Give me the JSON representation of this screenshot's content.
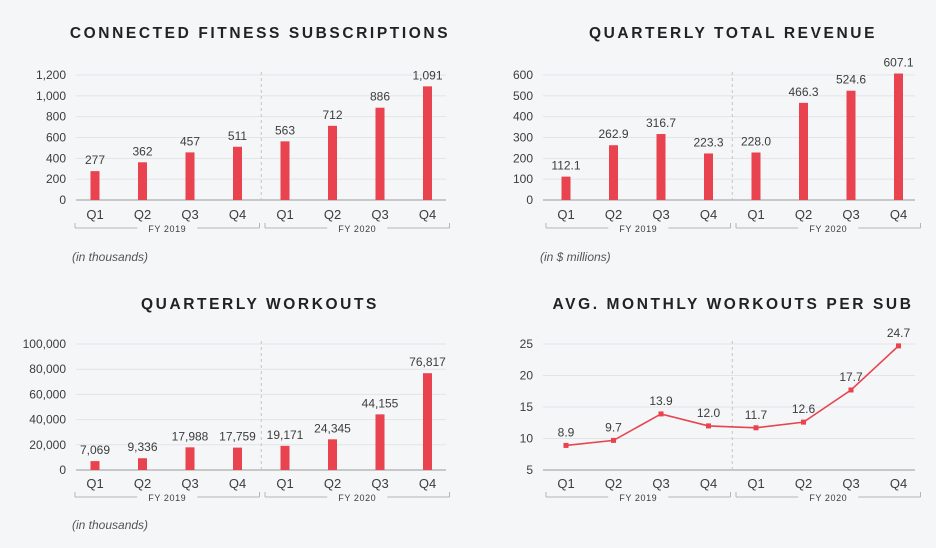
{
  "colors": {
    "bar": "#e8434e",
    "grid": "#e2e4e8",
    "axis": "#9a9a9a",
    "bracket": "#b5b5b5",
    "divider": "#c4c4c4"
  },
  "chart_data": [
    {
      "type": "bar",
      "title": "CONNECTED FITNESS SUBSCRIPTIONS",
      "categories": [
        "Q1",
        "Q2",
        "Q3",
        "Q4",
        "Q1",
        "Q2",
        "Q3",
        "Q4"
      ],
      "values": [
        277,
        362,
        457,
        511,
        563,
        712,
        886,
        1091
      ],
      "value_labels": [
        "277",
        "362",
        "457",
        "511",
        "563",
        "712",
        "886",
        "1,091"
      ],
      "ylim": [
        0,
        1200
      ],
      "yticks": [
        0,
        200,
        400,
        600,
        800,
        1000,
        1200
      ],
      "ytick_labels": [
        "0",
        "200",
        "400",
        "600",
        "800",
        "1,000",
        "1,200"
      ],
      "groups": [
        {
          "label": "FY 2019",
          "count": 4
        },
        {
          "label": "FY 2020",
          "count": 4
        }
      ],
      "unit_note": "(in thousands)",
      "grid": true
    },
    {
      "type": "bar",
      "title": "QUARTERLY TOTAL REVENUE",
      "categories": [
        "Q1",
        "Q2",
        "Q3",
        "Q4",
        "Q1",
        "Q2",
        "Q3",
        "Q4"
      ],
      "values": [
        112.1,
        262.9,
        316.7,
        223.3,
        228.0,
        466.3,
        524.6,
        607.1
      ],
      "value_labels": [
        "112.1",
        "262.9",
        "316.7",
        "223.3",
        "228.0",
        "466.3",
        "524.6",
        "607.1"
      ],
      "ylim": [
        0,
        600
      ],
      "yticks": [
        0,
        100,
        200,
        300,
        400,
        500,
        600
      ],
      "ytick_labels": [
        "0",
        "100",
        "200",
        "300",
        "400",
        "500",
        "600"
      ],
      "groups": [
        {
          "label": "FY 2019",
          "count": 4
        },
        {
          "label": "FY 2020",
          "count": 4
        }
      ],
      "unit_note": "(in $ millions)",
      "grid": true
    },
    {
      "type": "bar",
      "title": "QUARTERLY WORKOUTS",
      "categories": [
        "Q1",
        "Q2",
        "Q3",
        "Q4",
        "Q1",
        "Q2",
        "Q3",
        "Q4"
      ],
      "values": [
        7069,
        9336,
        17988,
        17759,
        19171,
        24345,
        44155,
        76817
      ],
      "value_labels": [
        "7,069",
        "9,336",
        "17,988",
        "17,759",
        "19,171",
        "24,345",
        "44,155",
        "76,817"
      ],
      "ylim": [
        0,
        100000
      ],
      "yticks": [
        0,
        20000,
        40000,
        60000,
        80000,
        100000
      ],
      "ytick_labels": [
        "0",
        "20,000",
        "40,000",
        "60,000",
        "80,000",
        "100,000"
      ],
      "groups": [
        {
          "label": "FY 2019",
          "count": 4
        },
        {
          "label": "FY 2020",
          "count": 4
        }
      ],
      "unit_note": "(in thousands)",
      "grid": true
    },
    {
      "type": "line",
      "title": "AVG. MONTHLY WORKOUTS PER SUB",
      "categories": [
        "Q1",
        "Q2",
        "Q3",
        "Q4",
        "Q1",
        "Q2",
        "Q3",
        "Q4"
      ],
      "values": [
        8.9,
        9.7,
        13.9,
        12.0,
        11.7,
        12.6,
        17.7,
        24.7
      ],
      "value_labels": [
        "8.9",
        "9.7",
        "13.9",
        "12.0",
        "11.7",
        "12.6",
        "17.7",
        "24.7"
      ],
      "ylim": [
        5,
        25
      ],
      "yticks": [
        5,
        10,
        15,
        20,
        25
      ],
      "ytick_labels": [
        "5",
        "10",
        "15",
        "20",
        "25"
      ],
      "groups": [
        {
          "label": "FY 2019",
          "count": 4
        },
        {
          "label": "FY 2020",
          "count": 4
        }
      ],
      "unit_note": "",
      "grid": true
    }
  ]
}
